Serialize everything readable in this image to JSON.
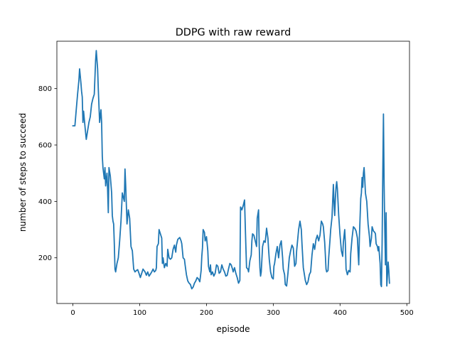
{
  "chart_data": {
    "type": "line",
    "title": "DDPG with raw reward",
    "xlabel": "episode",
    "ylabel": "number of steps to succeed",
    "xlim": [
      -24,
      504
    ],
    "ylim": [
      38,
      968
    ],
    "xticks": [
      0,
      100,
      200,
      300,
      400,
      500
    ],
    "yticks": [
      200,
      400,
      600,
      800
    ],
    "grid": false,
    "legend": "none",
    "series": [
      {
        "color": "#1f77b4",
        "points": [
          [
            0,
            668
          ],
          [
            3,
            668
          ],
          [
            5,
            725
          ],
          [
            7,
            780
          ],
          [
            9,
            830
          ],
          [
            10,
            870
          ],
          [
            12,
            820
          ],
          [
            13,
            790
          ],
          [
            14,
            770
          ],
          [
            15,
            680
          ],
          [
            16,
            720
          ],
          [
            18,
            668
          ],
          [
            20,
            620
          ],
          [
            22,
            650
          ],
          [
            24,
            680
          ],
          [
            26,
            700
          ],
          [
            28,
            745
          ],
          [
            30,
            765
          ],
          [
            32,
            780
          ],
          [
            34,
            900
          ],
          [
            35,
            935
          ],
          [
            37,
            870
          ],
          [
            38,
            800
          ],
          [
            40,
            680
          ],
          [
            42,
            725
          ],
          [
            43,
            680
          ],
          [
            44,
            560
          ],
          [
            45,
            520
          ],
          [
            47,
            480
          ],
          [
            48,
            520
          ],
          [
            49,
            455
          ],
          [
            51,
            500
          ],
          [
            52,
            440
          ],
          [
            53,
            360
          ],
          [
            54,
            520
          ],
          [
            56,
            490
          ],
          [
            58,
            430
          ],
          [
            59,
            350
          ],
          [
            60,
            330
          ],
          [
            61,
            320
          ],
          [
            62,
            250
          ],
          [
            63,
            160
          ],
          [
            64,
            150
          ],
          [
            66,
            180
          ],
          [
            68,
            200
          ],
          [
            70,
            260
          ],
          [
            72,
            330
          ],
          [
            74,
            430
          ],
          [
            75,
            420
          ],
          [
            76,
            410
          ],
          [
            77,
            400
          ],
          [
            78,
            515
          ],
          [
            79,
            460
          ],
          [
            80,
            390
          ],
          [
            81,
            320
          ],
          [
            82,
            345
          ],
          [
            83,
            370
          ],
          [
            85,
            340
          ],
          [
            87,
            240
          ],
          [
            89,
            225
          ],
          [
            91,
            160
          ],
          [
            93,
            150
          ],
          [
            95,
            155
          ],
          [
            97,
            158
          ],
          [
            99,
            145
          ],
          [
            101,
            130
          ],
          [
            103,
            145
          ],
          [
            105,
            160
          ],
          [
            108,
            150
          ],
          [
            110,
            138
          ],
          [
            112,
            150
          ],
          [
            114,
            135
          ],
          [
            116,
            142
          ],
          [
            118,
            150
          ],
          [
            120,
            160
          ],
          [
            122,
            150
          ],
          [
            124,
            155
          ],
          [
            125,
            165
          ],
          [
            126,
            240
          ],
          [
            128,
            250
          ],
          [
            129,
            300
          ],
          [
            131,
            285
          ],
          [
            133,
            270
          ],
          [
            134,
            180
          ],
          [
            135,
            200
          ],
          [
            137,
            165
          ],
          [
            139,
            180
          ],
          [
            141,
            170
          ],
          [
            142,
            230
          ],
          [
            144,
            200
          ],
          [
            146,
            195
          ],
          [
            148,
            200
          ],
          [
            150,
            230
          ],
          [
            152,
            245
          ],
          [
            154,
            220
          ],
          [
            155,
            245
          ],
          [
            157,
            265
          ],
          [
            159,
            270
          ],
          [
            160,
            272
          ],
          [
            162,
            260
          ],
          [
            163,
            250
          ],
          [
            165,
            200
          ],
          [
            167,
            195
          ],
          [
            168,
            175
          ],
          [
            170,
            140
          ],
          [
            172,
            118
          ],
          [
            174,
            110
          ],
          [
            176,
            105
          ],
          [
            178,
            90
          ],
          [
            180,
            96
          ],
          [
            182,
            110
          ],
          [
            184,
            118
          ],
          [
            186,
            130
          ],
          [
            188,
            125
          ],
          [
            190,
            115
          ],
          [
            192,
            155
          ],
          [
            193,
            205
          ],
          [
            194,
            235
          ],
          [
            195,
            300
          ],
          [
            197,
            290
          ],
          [
            198,
            260
          ],
          [
            200,
            275
          ],
          [
            202,
            225
          ],
          [
            203,
            170
          ],
          [
            205,
            150
          ],
          [
            206,
            175
          ],
          [
            207,
            140
          ],
          [
            209,
            150
          ],
          [
            211,
            135
          ],
          [
            213,
            145
          ],
          [
            215,
            175
          ],
          [
            217,
            170
          ],
          [
            219,
            145
          ],
          [
            221,
            150
          ],
          [
            223,
            175
          ],
          [
            225,
            160
          ],
          [
            227,
            150
          ],
          [
            229,
            135
          ],
          [
            231,
            138
          ],
          [
            233,
            160
          ],
          [
            235,
            180
          ],
          [
            237,
            175
          ],
          [
            239,
            160
          ],
          [
            240,
            150
          ],
          [
            242,
            165
          ],
          [
            244,
            145
          ],
          [
            246,
            130
          ],
          [
            248,
            110
          ],
          [
            249,
            115
          ],
          [
            250,
            120
          ],
          [
            251,
            380
          ],
          [
            253,
            370
          ],
          [
            255,
            385
          ],
          [
            257,
            405
          ],
          [
            258,
            320
          ],
          [
            259,
            240
          ],
          [
            260,
            165
          ],
          [
            262,
            160
          ],
          [
            263,
            150
          ],
          [
            265,
            190
          ],
          [
            267,
            210
          ],
          [
            268,
            260
          ],
          [
            269,
            285
          ],
          [
            271,
            280
          ],
          [
            273,
            260
          ],
          [
            275,
            240
          ],
          [
            276,
            340
          ],
          [
            278,
            370
          ],
          [
            279,
            240
          ],
          [
            280,
            165
          ],
          [
            281,
            135
          ],
          [
            282,
            150
          ],
          [
            284,
            240
          ],
          [
            286,
            260
          ],
          [
            288,
            255
          ],
          [
            290,
            305
          ],
          [
            292,
            270
          ],
          [
            293,
            230
          ],
          [
            294,
            195
          ],
          [
            296,
            150
          ],
          [
            298,
            130
          ],
          [
            300,
            125
          ],
          [
            301,
            170
          ],
          [
            302,
            180
          ],
          [
            304,
            215
          ],
          [
            306,
            240
          ],
          [
            308,
            200
          ],
          [
            310,
            245
          ],
          [
            312,
            260
          ],
          [
            314,
            200
          ],
          [
            315,
            160
          ],
          [
            317,
            140
          ],
          [
            318,
            105
          ],
          [
            320,
            100
          ],
          [
            322,
            145
          ],
          [
            324,
            200
          ],
          [
            326,
            225
          ],
          [
            328,
            245
          ],
          [
            330,
            235
          ],
          [
            332,
            170
          ],
          [
            334,
            180
          ],
          [
            335,
            225
          ],
          [
            337,
            275
          ],
          [
            338,
            300
          ],
          [
            340,
            330
          ],
          [
            342,
            300
          ],
          [
            343,
            250
          ],
          [
            345,
            165
          ],
          [
            347,
            135
          ],
          [
            348,
            120
          ],
          [
            350,
            105
          ],
          [
            352,
            115
          ],
          [
            354,
            140
          ],
          [
            356,
            150
          ],
          [
            358,
            210
          ],
          [
            360,
            250
          ],
          [
            362,
            230
          ],
          [
            364,
            265
          ],
          [
            366,
            280
          ],
          [
            368,
            260
          ],
          [
            370,
            280
          ],
          [
            372,
            330
          ],
          [
            374,
            320
          ],
          [
            375,
            310
          ],
          [
            377,
            255
          ],
          [
            378,
            210
          ],
          [
            379,
            160
          ],
          [
            380,
            150
          ],
          [
            382,
            155
          ],
          [
            383,
            200
          ],
          [
            385,
            265
          ],
          [
            386,
            300
          ],
          [
            388,
            345
          ],
          [
            390,
            460
          ],
          [
            391,
            395
          ],
          [
            392,
            350
          ],
          [
            393,
            410
          ],
          [
            394,
            450
          ],
          [
            395,
            470
          ],
          [
            396,
            445
          ],
          [
            398,
            350
          ],
          [
            400,
            280
          ],
          [
            402,
            225
          ],
          [
            404,
            205
          ],
          [
            405,
            255
          ],
          [
            407,
            300
          ],
          [
            408,
            250
          ],
          [
            409,
            160
          ],
          [
            411,
            140
          ],
          [
            413,
            155
          ],
          [
            415,
            150
          ],
          [
            416,
            215
          ],
          [
            418,
            270
          ],
          [
            420,
            310
          ],
          [
            422,
            305
          ],
          [
            424,
            295
          ],
          [
            426,
            270
          ],
          [
            427,
            220
          ],
          [
            428,
            175
          ],
          [
            429,
            275
          ],
          [
            431,
            410
          ],
          [
            432,
            430
          ],
          [
            433,
            485
          ],
          [
            434,
            450
          ],
          [
            435,
            500
          ],
          [
            436,
            520
          ],
          [
            437,
            480
          ],
          [
            438,
            430
          ],
          [
            440,
            400
          ],
          [
            442,
            320
          ],
          [
            444,
            275
          ],
          [
            445,
            240
          ],
          [
            447,
            270
          ],
          [
            448,
            310
          ],
          [
            450,
            295
          ],
          [
            452,
            290
          ],
          [
            453,
            285
          ],
          [
            454,
            250
          ],
          [
            456,
            240
          ],
          [
            457,
            225
          ],
          [
            458,
            240
          ],
          [
            460,
            180
          ],
          [
            461,
            105
          ],
          [
            462,
            98
          ],
          [
            463,
            250
          ],
          [
            464,
            500
          ],
          [
            465,
            710
          ],
          [
            466,
            460
          ],
          [
            467,
            300
          ],
          [
            468,
            175
          ],
          [
            469,
            360
          ],
          [
            470,
            100
          ],
          [
            471,
            140
          ],
          [
            472,
            185
          ],
          [
            473,
            155
          ],
          [
            474,
            110
          ]
        ]
      }
    ]
  }
}
